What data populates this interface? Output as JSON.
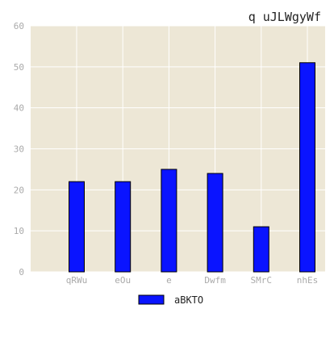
{
  "chart_data": {
    "type": "bar",
    "title": "q uJLWgyWf",
    "xlabel": "",
    "ylabel": "",
    "categories": [
      "qRWu",
      "eOu",
      "e",
      "Dwfm",
      "SMrC",
      "nhEs"
    ],
    "series": [
      {
        "name": "aBKTO",
        "values": [
          22,
          22,
          25,
          24,
          11,
          51
        ]
      }
    ],
    "ylim": [
      0,
      60
    ],
    "yticks": [
      0,
      10,
      20,
      30,
      40,
      50,
      60
    ],
    "grid": true,
    "legend_position": "bottom-center",
    "colors": {
      "bar_fill": "#0a14ff",
      "bar_edge": "#000000",
      "plot_background": "#ede7d6",
      "grid": "#ffffff",
      "tick_text": "#aaaaaa",
      "title_text": "#222222"
    }
  }
}
